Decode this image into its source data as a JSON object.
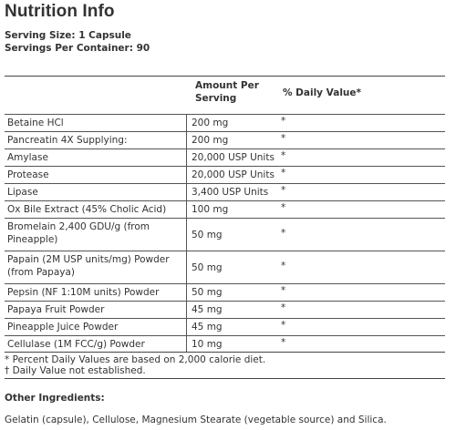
{
  "title": "Nutrition Info",
  "serving_size": "Serving Size: 1 Capsule",
  "servings_per_container": "Servings Per Container: 90",
  "table": {
    "amount_header": "Amount Per Serving",
    "dv_header": "% Daily Value*",
    "rows": [
      {
        "name": "Betaine HCl",
        "amount": "200 mg",
        "dv": "*"
      },
      {
        "name": "Pancreatin 4X Supplying:",
        "amount": "200 mg",
        "dv": "*"
      },
      {
        "name": "Amylase",
        "amount": "20,000 USP Units",
        "dv": "*"
      },
      {
        "name": "Protease",
        "amount": "20,000 USP Units",
        "dv": "*"
      },
      {
        "name": "Lipase",
        "amount": "3,400 USP Units",
        "dv": "*"
      },
      {
        "name": "Ox Bile Extract (45% Cholic Acid)",
        "amount": "100 mg",
        "dv": "*"
      },
      {
        "name": "Bromelain 2,400 GDU/g (from Pineapple)",
        "amount": "50 mg",
        "dv": "*"
      },
      {
        "name": "Papain (2M USP units/mg) Powder (from Papaya)",
        "amount": "50 mg",
        "dv": "*"
      },
      {
        "name": "Pepsin (NF 1:10M units) Powder",
        "amount": "50 mg",
        "dv": "*"
      },
      {
        "name": "Papaya Fruit Powder",
        "amount": "45 mg",
        "dv": "*"
      },
      {
        "name": "Pineapple Juice Powder",
        "amount": "45 mg",
        "dv": "*"
      },
      {
        "name": "Cellulase (1M FCC/g) Powder",
        "amount": "10 mg",
        "dv": "*"
      }
    ]
  },
  "footnotes": [
    "* Percent Daily Values are based on 2,000 calorie diet.",
    "† Daily Value not established."
  ],
  "other_ingredients": {
    "heading": "Other Ingredients:",
    "text": "Gelatin (capsule), Cellulose, Magnesium Stearate (vegetable source) and Silica."
  }
}
